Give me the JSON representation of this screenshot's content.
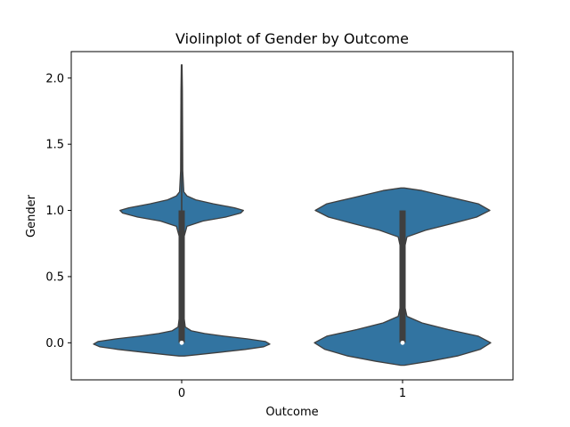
{
  "chart_data": {
    "type": "violin",
    "title": "Violinplot of Gender by Outcome",
    "xlabel": "Outcome",
    "ylabel": "Gender",
    "categories": [
      "0",
      "1"
    ],
    "ylim": [
      -0.28,
      2.2
    ],
    "yticks": [
      0.0,
      0.5,
      1.0,
      1.5,
      2.0
    ],
    "ytick_labels": [
      "0.0",
      "0.5",
      "1.0",
      "1.5",
      "2.0"
    ],
    "grid": false,
    "fill_color": "#3274a1",
    "edge_color": "#3f3f3f",
    "violins": [
      {
        "category": "0",
        "density_profile": [
          [
            -0.1,
            0.03
          ],
          [
            -0.09,
            0.18
          ],
          [
            -0.07,
            0.45
          ],
          [
            -0.05,
            0.72
          ],
          [
            -0.03,
            0.93
          ],
          [
            -0.01,
            1.0
          ],
          [
            0.01,
            0.95
          ],
          [
            0.03,
            0.74
          ],
          [
            0.05,
            0.48
          ],
          [
            0.07,
            0.26
          ],
          [
            0.09,
            0.11
          ],
          [
            0.12,
            0.04
          ],
          [
            0.2,
            0.025
          ],
          [
            0.4,
            0.022
          ],
          [
            0.6,
            0.022
          ],
          [
            0.8,
            0.026
          ],
          [
            0.88,
            0.06
          ],
          [
            0.92,
            0.24
          ],
          [
            0.95,
            0.5
          ],
          [
            0.98,
            0.67
          ],
          [
            1.0,
            0.7
          ],
          [
            1.02,
            0.6
          ],
          [
            1.05,
            0.36
          ],
          [
            1.08,
            0.16
          ],
          [
            1.11,
            0.06
          ],
          [
            1.14,
            0.024
          ],
          [
            1.3,
            0.012
          ],
          [
            1.6,
            0.01
          ],
          [
            1.9,
            0.008
          ],
          [
            2.1,
            0.004
          ]
        ],
        "box": {
          "q1": 0.0,
          "median": 0.0,
          "q3": 1.0,
          "whisker_low": 0.0,
          "whisker_high": 2.0
        }
      },
      {
        "category": "1",
        "density_profile": [
          [
            -0.17,
            0.02
          ],
          [
            -0.14,
            0.3
          ],
          [
            -0.1,
            0.62
          ],
          [
            -0.05,
            0.88
          ],
          [
            0.0,
            1.0
          ],
          [
            0.05,
            0.86
          ],
          [
            0.1,
            0.52
          ],
          [
            0.15,
            0.22
          ],
          [
            0.2,
            0.05
          ],
          [
            0.3,
            0.016
          ],
          [
            0.5,
            0.014
          ],
          [
            0.7,
            0.016
          ],
          [
            0.8,
            0.05
          ],
          [
            0.85,
            0.26
          ],
          [
            0.9,
            0.56
          ],
          [
            0.95,
            0.84
          ],
          [
            1.0,
            0.99
          ],
          [
            1.05,
            0.86
          ],
          [
            1.1,
            0.54
          ],
          [
            1.15,
            0.22
          ],
          [
            1.17,
            0.02
          ]
        ],
        "box": {
          "q1": 0.0,
          "median": 0.0,
          "q3": 1.0,
          "whisker_low": 0.0,
          "whisker_high": 1.0
        }
      }
    ]
  }
}
